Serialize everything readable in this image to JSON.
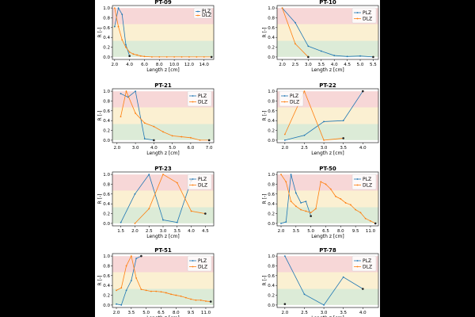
{
  "colors": {
    "plz": "#1f77b4",
    "dlz": "#ff7f0e",
    "band_high": "#f7d7d7",
    "band_mid": "#fbf0d2",
    "band_low": "#dcebd7",
    "end_marker": "#222222"
  },
  "chart_data": [
    {
      "type": "line",
      "title": "PT-09",
      "xlabel": "Length z [cm]",
      "ylabel": "R [-]",
      "xlim": [
        1.7,
        15.3
      ],
      "ylim": [
        -0.05,
        1.05
      ],
      "xticks": [
        2.0,
        4.0,
        6.0,
        8.0,
        10.0,
        12.0,
        14.0
      ],
      "xtick_labels": [
        "2.0",
        "4.0",
        "6.0",
        "8.0",
        "10.0",
        "12.0",
        "14.0"
      ],
      "yticks": [
        0.0,
        0.2,
        0.4,
        0.6,
        0.8,
        1.0
      ],
      "ytick_labels": [
        "0.0",
        "0.2",
        "0.4",
        "0.6",
        "0.8",
        "1.0"
      ],
      "bands": [
        [
          0.0,
          0.33
        ],
        [
          0.33,
          0.67
        ],
        [
          0.67,
          1.0
        ]
      ],
      "legend": "top-right",
      "legend_size": "small",
      "series": [
        {
          "name": "PLZ",
          "color": "#1f77b4",
          "x": [
            2.0,
            2.5,
            3.0,
            3.5,
            4.0
          ],
          "y": [
            0.62,
            1.0,
            0.87,
            0.25,
            0.02
          ]
        },
        {
          "name": "DLZ",
          "color": "#ff7f0e",
          "x": [
            2.0,
            2.5,
            3.0,
            3.5,
            4.0,
            4.5,
            5.0,
            5.5,
            6.0,
            7.0,
            8.0,
            9.0,
            10.0,
            11.0,
            12.0,
            13.0,
            14.0,
            15.0
          ],
          "y": [
            1.0,
            0.62,
            0.35,
            0.2,
            0.1,
            0.06,
            0.04,
            0.02,
            0.01,
            0.0,
            0.0,
            0.0,
            0.0,
            0.0,
            0.0,
            0.0,
            0.0,
            0.0
          ]
        }
      ]
    },
    {
      "type": "line",
      "title": "PT-10",
      "xlabel": "Length z [cm]",
      "ylabel": "R [-]",
      "xlim": [
        1.8,
        5.7
      ],
      "ylim": [
        -0.05,
        1.05
      ],
      "xticks": [
        2.0,
        2.5,
        3.0,
        3.5,
        4.0,
        4.5,
        5.0,
        5.5
      ],
      "xtick_labels": [
        "2.0",
        "2.5",
        "3.0",
        "3.5",
        "4.0",
        "4.5",
        "5.0",
        "5.5"
      ],
      "yticks": [
        0.0,
        0.2,
        0.4,
        0.6,
        0.8,
        1.0
      ],
      "ytick_labels": [
        "0.0",
        "0.2",
        "0.4",
        "0.6",
        "0.8",
        "1.0"
      ],
      "bands": [
        [
          0.0,
          0.33
        ],
        [
          0.33,
          0.67
        ],
        [
          0.67,
          1.0
        ]
      ],
      "legend": "top-right",
      "legend_size": "large",
      "series": [
        {
          "name": "PLZ",
          "color": "#1f77b4",
          "x": [
            2.0,
            2.5,
            3.0,
            3.5,
            4.0,
            4.5,
            5.0,
            5.5
          ],
          "y": [
            1.0,
            0.7,
            0.22,
            0.12,
            0.03,
            0.01,
            0.02,
            0.0
          ]
        },
        {
          "name": "DLZ",
          "color": "#ff7f0e",
          "x": [
            2.0,
            2.5,
            3.0
          ],
          "y": [
            1.0,
            0.27,
            0.0
          ]
        }
      ]
    },
    {
      "type": "line",
      "title": "PT-21",
      "xlabel": "Length z [cm]",
      "ylabel": "R [-]",
      "xlim": [
        1.75,
        7.25
      ],
      "ylim": [
        -0.05,
        1.05
      ],
      "xticks": [
        2.0,
        3.0,
        4.0,
        5.0,
        6.0,
        7.0
      ],
      "xtick_labels": [
        "2.0",
        "3.0",
        "4.0",
        "5.0",
        "6.0",
        "7.0"
      ],
      "yticks": [
        0.0,
        0.2,
        0.4,
        0.6,
        0.8,
        1.0
      ],
      "ytick_labels": [
        "0.0",
        "0.2",
        "0.4",
        "0.6",
        "0.8",
        "1.0"
      ],
      "bands": [
        [
          0.0,
          0.33
        ],
        [
          0.33,
          0.67
        ],
        [
          0.67,
          1.0
        ]
      ],
      "legend": "top-right",
      "legend_size": "large",
      "series": [
        {
          "name": "PLZ",
          "color": "#1f77b4",
          "x": [
            2.2,
            2.6,
            3.0,
            3.5,
            4.0
          ],
          "y": [
            0.95,
            0.88,
            1.0,
            0.03,
            0.0
          ]
        },
        {
          "name": "DLZ",
          "color": "#ff7f0e",
          "x": [
            2.2,
            2.5,
            3.0,
            3.5,
            4.0,
            4.5,
            5.0,
            5.5,
            6.0,
            6.5,
            7.0
          ],
          "y": [
            0.48,
            1.0,
            0.55,
            0.35,
            0.28,
            0.17,
            0.09,
            0.07,
            0.05,
            0.0,
            0.0
          ]
        }
      ]
    },
    {
      "type": "line",
      "title": "PT-22",
      "xlabel": "Length z [cm]",
      "ylabel": "R [-]",
      "xlim": [
        1.8,
        4.4
      ],
      "ylim": [
        -0.05,
        1.05
      ],
      "xticks": [
        2.0,
        2.5,
        3.0,
        3.5,
        4.0
      ],
      "xtick_labels": [
        "2.0",
        "2.5",
        "3.0",
        "3.5",
        "4.0"
      ],
      "yticks": [
        0.0,
        0.2,
        0.4,
        0.6,
        0.8,
        1.0
      ],
      "ytick_labels": [
        "0.0",
        "0.2",
        "0.4",
        "0.6",
        "0.8",
        "1.0"
      ],
      "bands": [
        [
          0.0,
          0.33
        ],
        [
          0.33,
          0.67
        ],
        [
          0.67,
          1.0
        ]
      ],
      "legend": "top-left",
      "legend_size": "large",
      "series": [
        {
          "name": "PLZ",
          "color": "#1f77b4",
          "x": [
            2.0,
            2.5,
            3.0,
            3.5,
            4.0
          ],
          "y": [
            0.0,
            0.1,
            0.38,
            0.4,
            1.0
          ]
        },
        {
          "name": "DLZ",
          "color": "#ff7f0e",
          "x": [
            2.0,
            2.5,
            3.0,
            3.5
          ],
          "y": [
            0.12,
            1.0,
            0.0,
            0.04
          ]
        }
      ]
    },
    {
      "type": "line",
      "title": "PT-23",
      "xlabel": "Length z [cm]",
      "ylabel": "R [-]",
      "xlim": [
        1.2,
        4.8
      ],
      "ylim": [
        -0.05,
        1.05
      ],
      "xticks": [
        1.5,
        2.0,
        2.5,
        3.0,
        3.5,
        4.0,
        4.5
      ],
      "xtick_labels": [
        "1.5",
        "2.0",
        "2.5",
        "3.0",
        "3.5",
        "4.0",
        "4.5"
      ],
      "yticks": [
        0.0,
        0.2,
        0.4,
        0.6,
        0.8,
        1.0
      ],
      "ytick_labels": [
        "0.0",
        "0.2",
        "0.4",
        "0.6",
        "0.8",
        "1.0"
      ],
      "bands": [
        [
          0.0,
          0.33
        ],
        [
          0.33,
          0.67
        ],
        [
          0.67,
          1.0
        ]
      ],
      "legend": "top-right",
      "legend_size": "large",
      "series": [
        {
          "name": "PLZ",
          "color": "#1f77b4",
          "x": [
            1.5,
            2.0,
            2.5,
            3.0,
            3.5,
            4.0
          ],
          "y": [
            0.02,
            0.6,
            1.0,
            0.07,
            0.02,
            0.88
          ]
        },
        {
          "name": "DLZ",
          "color": "#ff7f0e",
          "x": [
            2.0,
            2.5,
            3.0,
            3.5,
            4.0,
            4.5
          ],
          "y": [
            0.0,
            0.3,
            1.0,
            0.83,
            0.25,
            0.2
          ]
        }
      ]
    },
    {
      "type": "line",
      "title": "PT-50",
      "xlabel": "Length z [cm]",
      "ylabel": "R [-]",
      "xlim": [
        1.6,
        11.8
      ],
      "ylim": [
        -0.05,
        1.05
      ],
      "xticks": [
        2.0,
        3.5,
        5.0,
        6.5,
        8.0,
        9.5,
        11.0
      ],
      "xtick_labels": [
        "2.0",
        "3.5",
        "5.0",
        "6.5",
        "8.0",
        "9.5",
        "11.0"
      ],
      "yticks": [
        0.0,
        0.2,
        0.4,
        0.6,
        0.8,
        1.0
      ],
      "ytick_labels": [
        "0.0",
        "0.2",
        "0.4",
        "0.6",
        "0.8",
        "1.0"
      ],
      "bands": [
        [
          0.0,
          0.33
        ],
        [
          0.33,
          0.67
        ],
        [
          0.67,
          1.0
        ]
      ],
      "legend": "top-right",
      "legend_size": "large",
      "series": [
        {
          "name": "PLZ",
          "color": "#1f77b4",
          "x": [
            2.0,
            2.5,
            3.0,
            3.5,
            4.0,
            4.5,
            5.0
          ],
          "y": [
            0.0,
            0.03,
            1.0,
            0.62,
            0.42,
            0.45,
            0.15
          ]
        },
        {
          "name": "DLZ",
          "color": "#ff7f0e",
          "x": [
            2.0,
            2.5,
            3.0,
            3.5,
            4.0,
            4.5,
            5.0,
            5.5,
            6.0,
            6.5,
            7.0,
            7.5,
            8.0,
            8.5,
            9.0,
            9.5,
            10.0,
            10.5,
            11.0,
            11.5
          ],
          "y": [
            1.0,
            0.85,
            0.45,
            0.35,
            0.28,
            0.25,
            0.22,
            0.3,
            0.85,
            0.8,
            0.7,
            0.55,
            0.5,
            0.42,
            0.38,
            0.28,
            0.22,
            0.1,
            0.05,
            0.0
          ]
        }
      ]
    },
    {
      "type": "line",
      "title": "PT-51",
      "xlabel": "Length z [cm]",
      "ylabel": "R [-]",
      "xlim": [
        1.6,
        11.8
      ],
      "ylim": [
        -0.05,
        1.05
      ],
      "xticks": [
        2.0,
        3.5,
        5.0,
        6.5,
        8.0,
        9.5,
        11.0
      ],
      "xtick_labels": [
        "2.0",
        "3.5",
        "5.0",
        "6.5",
        "8.0",
        "9.5",
        "11.0"
      ],
      "yticks": [
        0.0,
        0.2,
        0.4,
        0.6,
        0.8,
        1.0
      ],
      "ytick_labels": [
        "0.0",
        "0.2",
        "0.4",
        "0.6",
        "0.8",
        "1.0"
      ],
      "bands": [
        [
          0.0,
          0.33
        ],
        [
          0.33,
          0.67
        ],
        [
          0.67,
          1.0
        ]
      ],
      "legend": "top-right",
      "legend_size": "large",
      "series": [
        {
          "name": "PLZ",
          "color": "#1f77b4",
          "x": [
            2.0,
            2.5,
            3.0,
            3.5,
            4.0,
            4.5
          ],
          "y": [
            0.02,
            0.0,
            0.3,
            0.5,
            0.95,
            1.0
          ]
        },
        {
          "name": "DLZ",
          "color": "#ff7f0e",
          "x": [
            2.0,
            2.5,
            3.0,
            3.5,
            4.0,
            4.5,
            5.0,
            5.5,
            6.0,
            6.5,
            7.0,
            7.5,
            8.0,
            8.5,
            9.0,
            9.5,
            10.0,
            10.5,
            11.0,
            11.5
          ],
          "y": [
            0.3,
            0.35,
            0.8,
            1.0,
            0.55,
            0.32,
            0.3,
            0.28,
            0.28,
            0.27,
            0.25,
            0.22,
            0.2,
            0.18,
            0.15,
            0.12,
            0.1,
            0.1,
            0.08,
            0.07
          ]
        }
      ]
    },
    {
      "type": "line",
      "title": "PT-78",
      "xlabel": "Length z [cm]",
      "ylabel": "R [-]",
      "xlim": [
        1.8,
        4.4
      ],
      "ylim": [
        -0.05,
        1.05
      ],
      "xticks": [
        2.0,
        2.5,
        3.0,
        3.5,
        4.0
      ],
      "xtick_labels": [
        "2.0",
        "2.5",
        "3.0",
        "3.5",
        "4.0"
      ],
      "yticks": [
        0.0,
        0.2,
        0.4,
        0.6,
        0.8,
        1.0
      ],
      "ytick_labels": [
        "0.0",
        "0.2",
        "0.4",
        "0.6",
        "0.8",
        "1.0"
      ],
      "bands": [
        [
          0.0,
          0.33
        ],
        [
          0.33,
          0.67
        ],
        [
          0.67,
          1.0
        ]
      ],
      "legend": "top-right",
      "legend_size": "large",
      "series": [
        {
          "name": "PLZ",
          "color": "#1f77b4",
          "x": [
            2.0,
            2.5,
            3.0,
            3.5,
            4.0
          ],
          "y": [
            1.0,
            0.22,
            0.0,
            0.57,
            0.33
          ]
        },
        {
          "name": "DLZ",
          "color": "#ff7f0e",
          "x": [
            2.0
          ],
          "y": [
            0.02
          ]
        }
      ]
    }
  ]
}
